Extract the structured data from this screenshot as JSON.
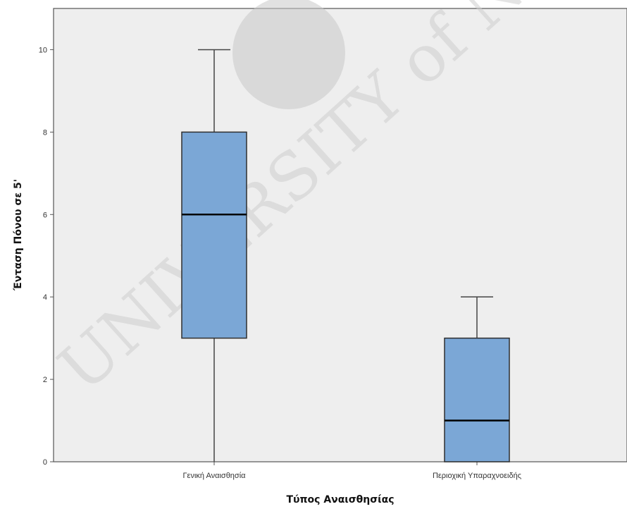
{
  "chart_data": {
    "type": "boxplot",
    "title": "",
    "xlabel": "Τύπος Αναισθησίας",
    "ylabel": "Ένταση Πόνου σε 5'",
    "ylim": [
      0,
      11
    ],
    "yticks": [
      0,
      2,
      4,
      6,
      8,
      10
    ],
    "ytick_labels": [
      "0",
      "2",
      "4",
      "6",
      "8",
      "10"
    ],
    "categories": [
      "Γενική Αναισθησία",
      "Περιοχική Υπαραχνοειδής"
    ],
    "boxes": [
      {
        "category": "Γενική Αναισθησία",
        "min": 0,
        "q1": 3,
        "median": 6,
        "q3": 8,
        "max": 10
      },
      {
        "category": "Περιοχική Υπαραχνοειδής",
        "min": 0,
        "q1": 0,
        "median": 1,
        "q3": 3,
        "max": 4
      }
    ],
    "grid": false,
    "legend": "none",
    "colors": {
      "box_fill": "#7BA7D6",
      "box_stroke": "#2f2f2f",
      "plot_bg": "#eeeeee",
      "plot_border": "#555555"
    }
  },
  "watermark": {
    "text": "UNIVERSITY of NICOSIA",
    "description": "watermark"
  }
}
